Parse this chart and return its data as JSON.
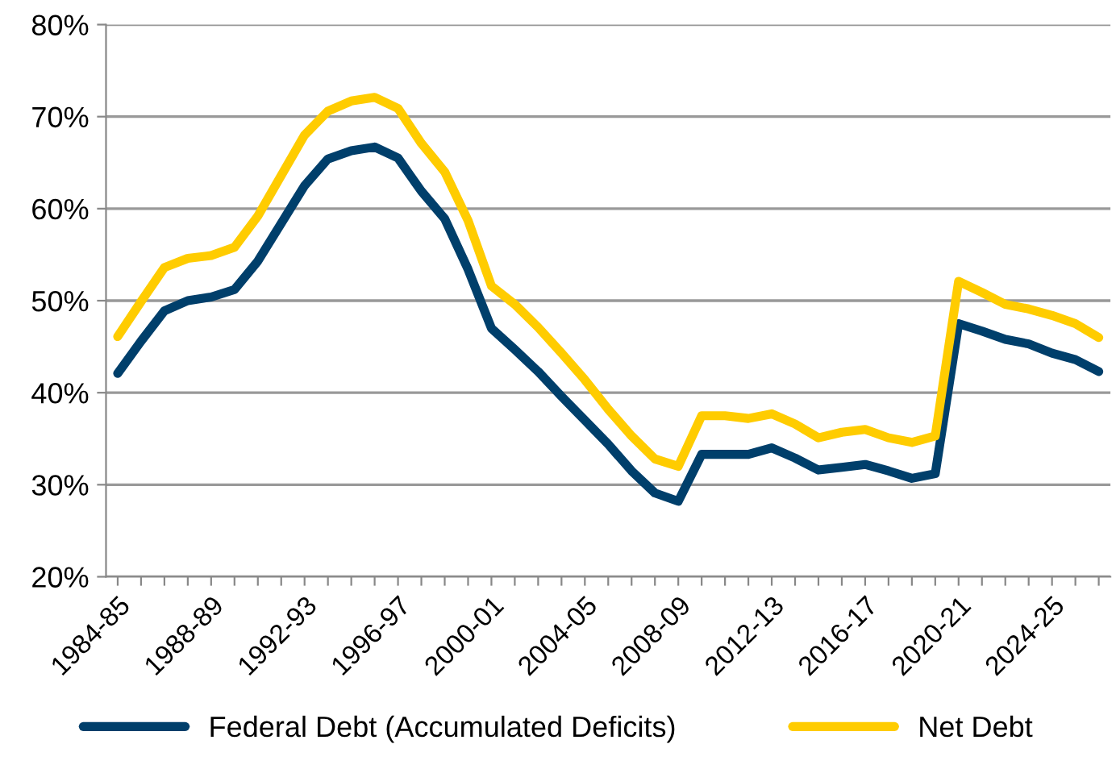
{
  "chart_data": {
    "type": "line",
    "categories": [
      "1984-85",
      null,
      null,
      null,
      "1988-89",
      null,
      null,
      null,
      "1992-93",
      null,
      null,
      null,
      "1996-97",
      null,
      null,
      null,
      "2000-01",
      null,
      null,
      null,
      "2004-05",
      null,
      null,
      null,
      "2008-09",
      null,
      null,
      null,
      "2012-13",
      null,
      null,
      null,
      "2016-17",
      null,
      null,
      null,
      "2020-21",
      null,
      null,
      null,
      "2024-25",
      null,
      null
    ],
    "series": [
      {
        "name": "Federal Debt (Accumulated Deficits)",
        "color": "#003f6b",
        "values": [
          42.1,
          45.6,
          48.9,
          50.0,
          50.4,
          51.2,
          54.3,
          58.4,
          62.5,
          65.4,
          66.3,
          66.7,
          65.5,
          61.9,
          58.9,
          53.4,
          47.0,
          44.7,
          42.3,
          39.6,
          37.0,
          34.4,
          31.5,
          29.1,
          28.2,
          33.3,
          33.3,
          33.3,
          34.0,
          32.9,
          31.6,
          31.9,
          32.2,
          31.5,
          30.7,
          31.2,
          47.5,
          46.7,
          45.8,
          45.3,
          44.3,
          43.6,
          42.3
        ]
      },
      {
        "name": "Net Debt",
        "color": "#ffcc00",
        "values": [
          46.1,
          49.9,
          53.6,
          54.6,
          54.9,
          55.8,
          59.2,
          63.6,
          68.0,
          70.6,
          71.7,
          72.1,
          70.9,
          67.1,
          64.0,
          58.7,
          51.6,
          49.6,
          47.1,
          44.3,
          41.4,
          38.2,
          35.3,
          32.8,
          32.0,
          37.5,
          37.5,
          37.2,
          37.7,
          36.6,
          35.1,
          35.7,
          36.0,
          35.1,
          34.6,
          35.3,
          52.1,
          50.9,
          49.6,
          49.1,
          48.4,
          47.5,
          46.0
        ]
      }
    ],
    "ylim": [
      20,
      80
    ],
    "yticks": [
      {
        "value": 20,
        "label": "20%"
      },
      {
        "value": 30,
        "label": "30%"
      },
      {
        "value": 40,
        "label": "40%"
      },
      {
        "value": 50,
        "label": "50%"
      },
      {
        "value": 60,
        "label": "60%"
      },
      {
        "value": 70,
        "label": "70%"
      },
      {
        "value": 80,
        "label": "80%"
      }
    ],
    "grid": "y",
    "legend": "bottom",
    "marker": "none",
    "line_style": "solid"
  }
}
